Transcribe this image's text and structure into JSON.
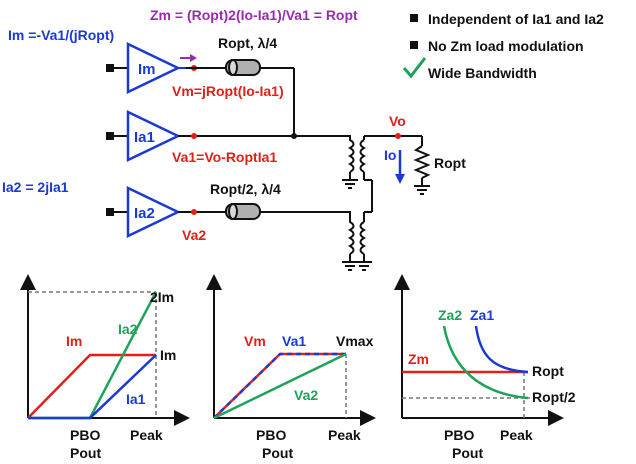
{
  "colors": {
    "blue": "#1a3ad6",
    "red": "#e0201a",
    "green": "#1fa35a",
    "purple": "#9a2bb0",
    "black": "#111111",
    "gray": "#777777",
    "tl_fill": "#b0b0b0"
  },
  "schematic": {
    "eq_im": "Im =-Va1/(jRopt)",
    "eq_zm": "Zm = (Ropt)2(Io-Ia1)/Va1 = Ropt",
    "eq_ia2": "Ia2 = 2jIa1",
    "amp_m": "Im",
    "amp_a1": "Ia1",
    "amp_a2": "Ia2",
    "tl1": "Ropt, λ/4",
    "tl2": "Ropt/2, λ/4",
    "vm": "Vm=jRopt(Io-Ia1)",
    "va1": "Va1=Vo-RoptIa1",
    "va2": "Va2",
    "vo": "Vo",
    "io": "Io",
    "rload": "Ropt"
  },
  "legend": {
    "items": [
      "Independent of Ia1 and Ia2",
      "No Zm load modulation"
    ],
    "check_text": "Wide Bandwidth",
    "icons": [
      "square-bullet",
      "square-bullet",
      "check-icon"
    ]
  },
  "plots": [
    {
      "title": "",
      "x_ticks": [
        "PBO",
        "Peak"
      ],
      "xlabel": "Pout",
      "labels": {
        "top": "2Im",
        "ia2": "Ia2",
        "im": "Im",
        "im_right": "Im",
        "ia1": "Ia1"
      }
    },
    {
      "title": "",
      "x_ticks": [
        "PBO",
        "Peak"
      ],
      "xlabel": "Pout",
      "labels": {
        "vm": "Vm",
        "va1": "Va1",
        "vmax": "Vmax",
        "va2": "Va2"
      }
    },
    {
      "title": "",
      "x_ticks": [
        "PBO",
        "Peak"
      ],
      "xlabel": "Pout",
      "labels": {
        "za2": "Za2",
        "za1": "Za1",
        "zm": "Zm",
        "ropt": "Ropt",
        "ropt2": "Ropt/2"
      }
    }
  ],
  "chart_data": [
    {
      "type": "line",
      "x": [
        "0",
        "PBO",
        "Peak"
      ],
      "series": [
        {
          "name": "Im",
          "values": [
            0,
            1,
            1
          ]
        },
        {
          "name": "Ia2",
          "values": [
            0,
            0,
            2
          ]
        },
        {
          "name": "Ia1",
          "values": [
            0,
            0,
            1
          ]
        }
      ],
      "ylabel": "",
      "xlabel": "Pout",
      "ylim": [
        0,
        2
      ]
    },
    {
      "type": "line",
      "x": [
        "0",
        "PBO",
        "Peak"
      ],
      "series": [
        {
          "name": "Vm",
          "values": [
            0,
            1,
            1
          ]
        },
        {
          "name": "Va1",
          "values": [
            0,
            1,
            1
          ]
        },
        {
          "name": "Va2",
          "values": [
            0,
            0.5,
            1
          ]
        }
      ],
      "xlabel": "Pout",
      "ylim": [
        0,
        1
      ]
    },
    {
      "type": "line",
      "x": [
        "PBO",
        "Peak"
      ],
      "series": [
        {
          "name": "Zm",
          "values": [
            "Ropt",
            "Ropt"
          ]
        },
        {
          "name": "Za1",
          "values": [
            "infinite",
            "Ropt"
          ]
        },
        {
          "name": "Za2",
          "values": [
            "infinite",
            "Ropt/2"
          ]
        }
      ],
      "xlabel": "Pout"
    }
  ]
}
